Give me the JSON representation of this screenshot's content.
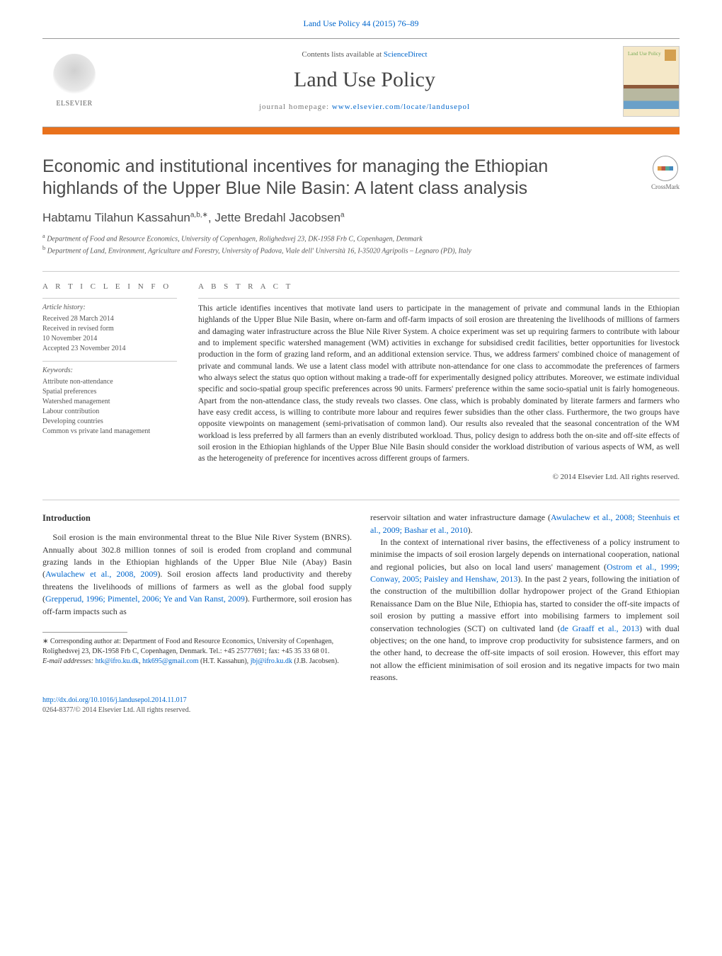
{
  "top_citation": {
    "journal": "Land Use Policy",
    "vol": "44 (2015) 76–89"
  },
  "header": {
    "elsevier": "ELSEVIER",
    "contents_prefix": "Contents lists available at ",
    "contents_link": "ScienceDirect",
    "journal": "Land Use Policy",
    "homepage_prefix": "journal homepage: ",
    "homepage_link": "www.elsevier.com/locate/landusepol",
    "cover_label": "Land Use Policy"
  },
  "crossmark": "CrossMark",
  "title": "Economic and institutional incentives for managing the Ethiopian highlands of the Upper Blue Nile Basin: A latent class analysis",
  "authors_html": "Habtamu Tilahun Kassahun",
  "authors_sup1": "a,b,∗",
  "authors_sep": ", ",
  "author2": "Jette Bredahl Jacobsen",
  "authors_sup2": "a",
  "affiliations": {
    "a": "Department of Food and Resource Economics, University of Copenhagen, Rolighedsvej 23, DK-1958 Frb C, Copenhagen, Denmark",
    "b": "Department of Land, Environment, Agriculture and Forestry, University of Padova, Viale dell' Università 16, I-35020 Agripolis – Legnaro (PD), Italy"
  },
  "info": {
    "heading": "a r t i c l e   i n f o",
    "history_title": "Article history:",
    "history": [
      "Received 28 March 2014",
      "Received in revised form",
      "10 November 2014",
      "Accepted 23 November 2014"
    ],
    "keywords_title": "Keywords:",
    "keywords": [
      "Attribute non-attendance",
      "Spatial preferences",
      "Watershed management",
      "Labour contribution",
      "Developing countries",
      "Common vs private land management"
    ]
  },
  "abstract": {
    "heading": "a b s t r a c t",
    "text": "This article identifies incentives that motivate land users to participate in the management of private and communal lands in the Ethiopian highlands of the Upper Blue Nile Basin, where on-farm and off-farm impacts of soil erosion are threatening the livelihoods of millions of farmers and damaging water infrastructure across the Blue Nile River System. A choice experiment was set up requiring farmers to contribute with labour and to implement specific watershed management (WM) activities in exchange for subsidised credit facilities, better opportunities for livestock production in the form of grazing land reform, and an additional extension service. Thus, we address farmers' combined choice of management of private and communal lands. We use a latent class model with attribute non-attendance for one class to accommodate the preferences of farmers who always select the status quo option without making a trade-off for experimentally designed policy attributes. Moreover, we estimate individual specific and socio-spatial group specific preferences across 90 units. Farmers' preference within the same socio-spatial unit is fairly homogeneous. Apart from the non-attendance class, the study reveals two classes. One class, which is probably dominated by literate farmers and farmers who have easy credit access, is willing to contribute more labour and requires fewer subsidies than the other class. Furthermore, the two groups have opposite viewpoints on management (semi-privatisation of common land). Our results also revealed that the seasonal concentration of the WM workload is less preferred by all farmers than an evenly distributed workload. Thus, policy design to address both the on-site and off-site effects of soil erosion in the Ethiopian highlands of the Upper Blue Nile Basin should consider the workload distribution of various aspects of WM, as well as the heterogeneity of preference for incentives across different groups of farmers.",
    "copyright": "© 2014 Elsevier Ltd. All rights reserved."
  },
  "body": {
    "intro_heading": "Introduction",
    "col1_p1_a": "Soil erosion is the main environmental threat to the Blue Nile River System (BNRS). Annually about 302.8 million tonnes of soil is eroded from cropland and communal grazing lands in the Ethiopian highlands of the Upper Blue Nile (Abay) Basin (",
    "col1_p1_link1": "Awulachew et al., 2008, 2009",
    "col1_p1_b": "). Soil erosion affects land productivity and thereby threatens the livelihoods of millions of farmers as well as the global food supply (",
    "col1_p1_link2": "Grepperud, 1996; Pimentel, 2006; Ye and Van Ranst, 2009",
    "col1_p1_c": "). Furthermore, soil erosion has off-farm impacts such as",
    "col2_p1_a": "reservoir siltation and water infrastructure damage (",
    "col2_p1_link1": "Awulachew et al., 2008; Steenhuis et al., 2009; Bashar et al., 2010",
    "col2_p1_b": ").",
    "col2_p2_a": "In the context of international river basins, the effectiveness of a policy instrument to minimise the impacts of soil erosion largely depends on international cooperation, national and regional policies, but also on local land users' management (",
    "col2_p2_link1": "Ostrom et al., 1999; Conway, 2005; Paisley and Henshaw, 2013",
    "col2_p2_b": "). In the past 2 years, following the initiation of the construction of the multibillion dollar hydropower project of the Grand Ethiopian Renaissance Dam on the Blue Nile, Ethiopia has, started to consider the off-site impacts of soil erosion by putting a massive effort into mobilising farmers to implement soil conservation technologies (SCT) on cultivated land (",
    "col2_p2_link2": "de Graaff et al., 2013",
    "col2_p2_c": ") with dual objectives; on the one hand, to improve crop productivity for subsistence farmers, and on the other hand, to decrease the off-site impacts of soil erosion. However, this effort may not allow the efficient minimisation of soil erosion and its negative impacts for two main reasons."
  },
  "footnotes": {
    "corr": "∗ Corresponding author at: Department of Food and Resource Economics, University of Copenhagen, Rolighedsvej 23, DK-1958 Frb C, Copenhagen, Denmark. Tel.: +45 25777691; fax: +45 35 33 68 01.",
    "email_label": "E-mail addresses: ",
    "email1": "htk@ifro.ku.dk",
    "email_sep1": ", ",
    "email2": "htk695@gmail.com",
    "email_name1": " (H.T. Kassahun), ",
    "email3": "jbj@ifro.ku.dk",
    "email_name2": " (J.B. Jacobsen)."
  },
  "doi": {
    "link": "http://dx.doi.org/10.1016/j.landusepol.2014.11.017",
    "issn": "0264-8377/© 2014 Elsevier Ltd. All rights reserved."
  },
  "colors": {
    "link": "#0066cc",
    "orange": "#e9711c",
    "text": "#333333",
    "muted": "#666666"
  }
}
